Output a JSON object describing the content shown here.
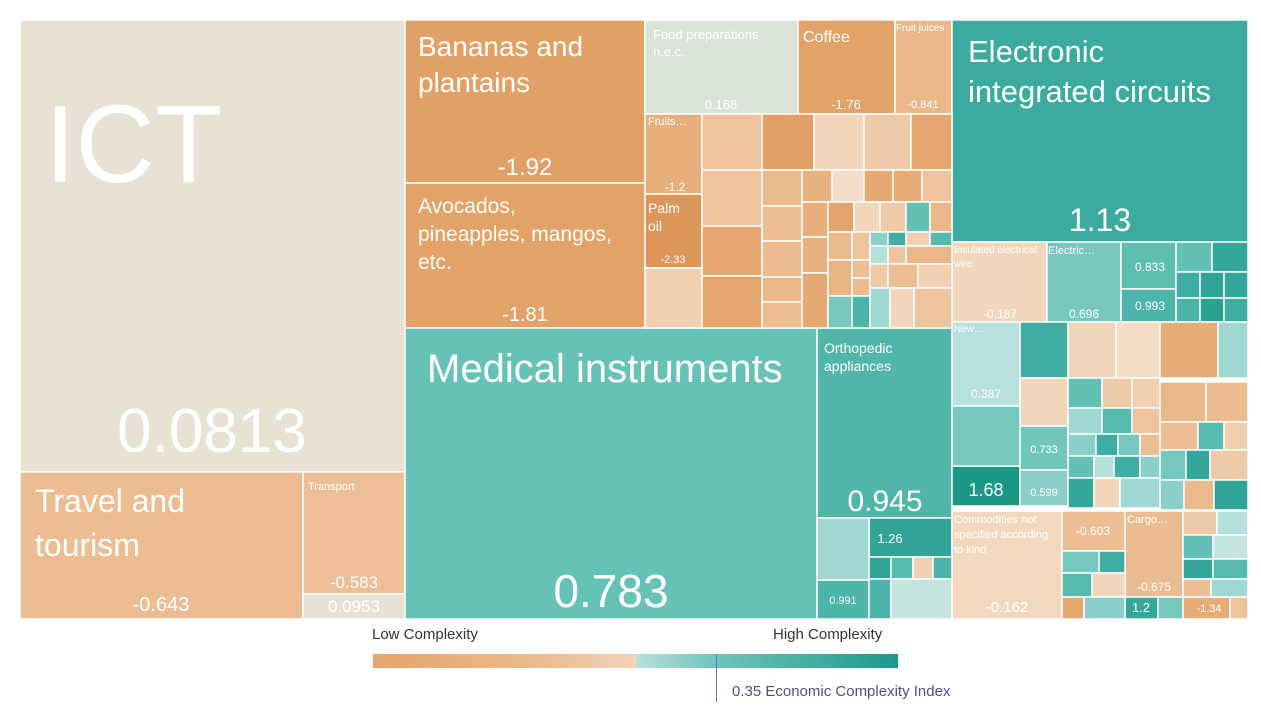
{
  "chart_data": {
    "type": "treemap",
    "title": "",
    "color_metric": "Economic Complexity Index",
    "nodes": [
      {
        "id": "ict",
        "label": "ICT",
        "value_text": "0.0813",
        "ci": 0.08
      },
      {
        "id": "travel",
        "label": "Travel and tourism",
        "value_text": "-0.643",
        "ci": -0.64
      },
      {
        "id": "transport",
        "label": "Transport",
        "value_text": "-0.583",
        "ci": -0.58
      },
      {
        "id": "svc-small",
        "label": "",
        "value_text": "0.0953",
        "ci": 0.1
      },
      {
        "id": "bananas",
        "label": "Bananas and plantains",
        "value_text": "-1.92",
        "ci": -1.92
      },
      {
        "id": "avocados",
        "label": "Avocados, pineapples, mangos, etc.",
        "value_text": "-1.81",
        "ci": -1.81
      },
      {
        "id": "food-prep",
        "label": "Food preparations n.e.c.",
        "value_text": "0.168",
        "ci": 0.17
      },
      {
        "id": "coffee",
        "label": "Coffee",
        "value_text": "-1.76",
        "ci": -1.76
      },
      {
        "id": "fruit-juices",
        "label": "Fruit juices",
        "value_text": "-0.841",
        "ci": -0.84
      },
      {
        "id": "fruits",
        "label": "Fruits…",
        "value_text": "-1.2",
        "ci": -1.2
      },
      {
        "id": "palm-oil",
        "label": "Palm oil",
        "value_text": "-2.33",
        "ci": -2.33
      },
      {
        "id": "circuits",
        "label": "Electronic integrated circuits",
        "value_text": "1.13",
        "ci": 1.13
      },
      {
        "id": "wire",
        "label": "Insulated electrical wire",
        "value_text": "-0.187",
        "ci": -0.19
      },
      {
        "id": "electric",
        "label": "Electric…",
        "value_text": "0.696",
        "ci": 0.7
      },
      {
        "id": "e833",
        "label": "",
        "value_text": "0.833",
        "ci": 0.83
      },
      {
        "id": "e993",
        "label": "",
        "value_text": "0.993",
        "ci": 0.99
      },
      {
        "id": "medical",
        "label": "Medical instruments",
        "value_text": "0.783",
        "ci": 0.78
      },
      {
        "id": "ortho",
        "label": "Orthopedic appliances",
        "value_text": "0.945",
        "ci": 0.95
      },
      {
        "id": "m126",
        "label": "",
        "value_text": "1.26",
        "ci": 1.26
      },
      {
        "id": "m991",
        "label": "",
        "value_text": "0.991",
        "ci": 0.99
      },
      {
        "id": "new",
        "label": "New…",
        "value_text": "0.387",
        "ci": 0.39
      },
      {
        "id": "x168",
        "label": "",
        "value_text": "1.68",
        "ci": 1.68
      },
      {
        "id": "x733",
        "label": "",
        "value_text": "0.733",
        "ci": 0.73
      },
      {
        "id": "x599",
        "label": "",
        "value_text": "0.599",
        "ci": 0.6
      },
      {
        "id": "commod",
        "label": "Commodities not specified according to kind",
        "value_text": "-0.162",
        "ci": -0.16
      },
      {
        "id": "x603",
        "label": "",
        "value_text": "-0.603",
        "ci": -0.6
      },
      {
        "id": "cargo",
        "label": "Cargo…",
        "value_text": "-0.675",
        "ci": -0.68
      },
      {
        "id": "x12",
        "label": "",
        "value_text": "1.2",
        "ci": 1.2
      },
      {
        "id": "x134",
        "label": "",
        "value_text": "-1.34",
        "ci": -1.34
      }
    ],
    "legend": {
      "low": "Low Complexity",
      "high": "High Complexity",
      "marker_text": "0.35 Economic Complexity Index",
      "marker_value": 0.35
    }
  }
}
